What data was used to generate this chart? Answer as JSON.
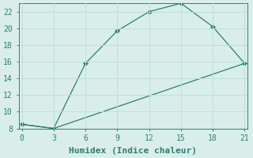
{
  "xlabel": "Humidex (Indice chaleur)",
  "line1_x": [
    0,
    3,
    6,
    9,
    12,
    15,
    18,
    21
  ],
  "line1_y": [
    8.5,
    8.0,
    15.8,
    19.7,
    22.0,
    23.0,
    20.2,
    15.8
  ],
  "line2_x": [
    0,
    3,
    21
  ],
  "line2_y": [
    8.5,
    8.0,
    15.8
  ],
  "line_color": "#2e7d72",
  "marker": "D",
  "marker_size": 3,
  "xlim": [
    -0.3,
    21.3
  ],
  "ylim": [
    8,
    23
  ],
  "xticks": [
    0,
    3,
    6,
    9,
    12,
    15,
    18,
    21
  ],
  "yticks": [
    8,
    10,
    12,
    14,
    16,
    18,
    20,
    22
  ],
  "bg_color": "#d9eeea",
  "grid_color": "#c0ddd8",
  "tick_fontsize": 7,
  "label_fontsize": 8
}
